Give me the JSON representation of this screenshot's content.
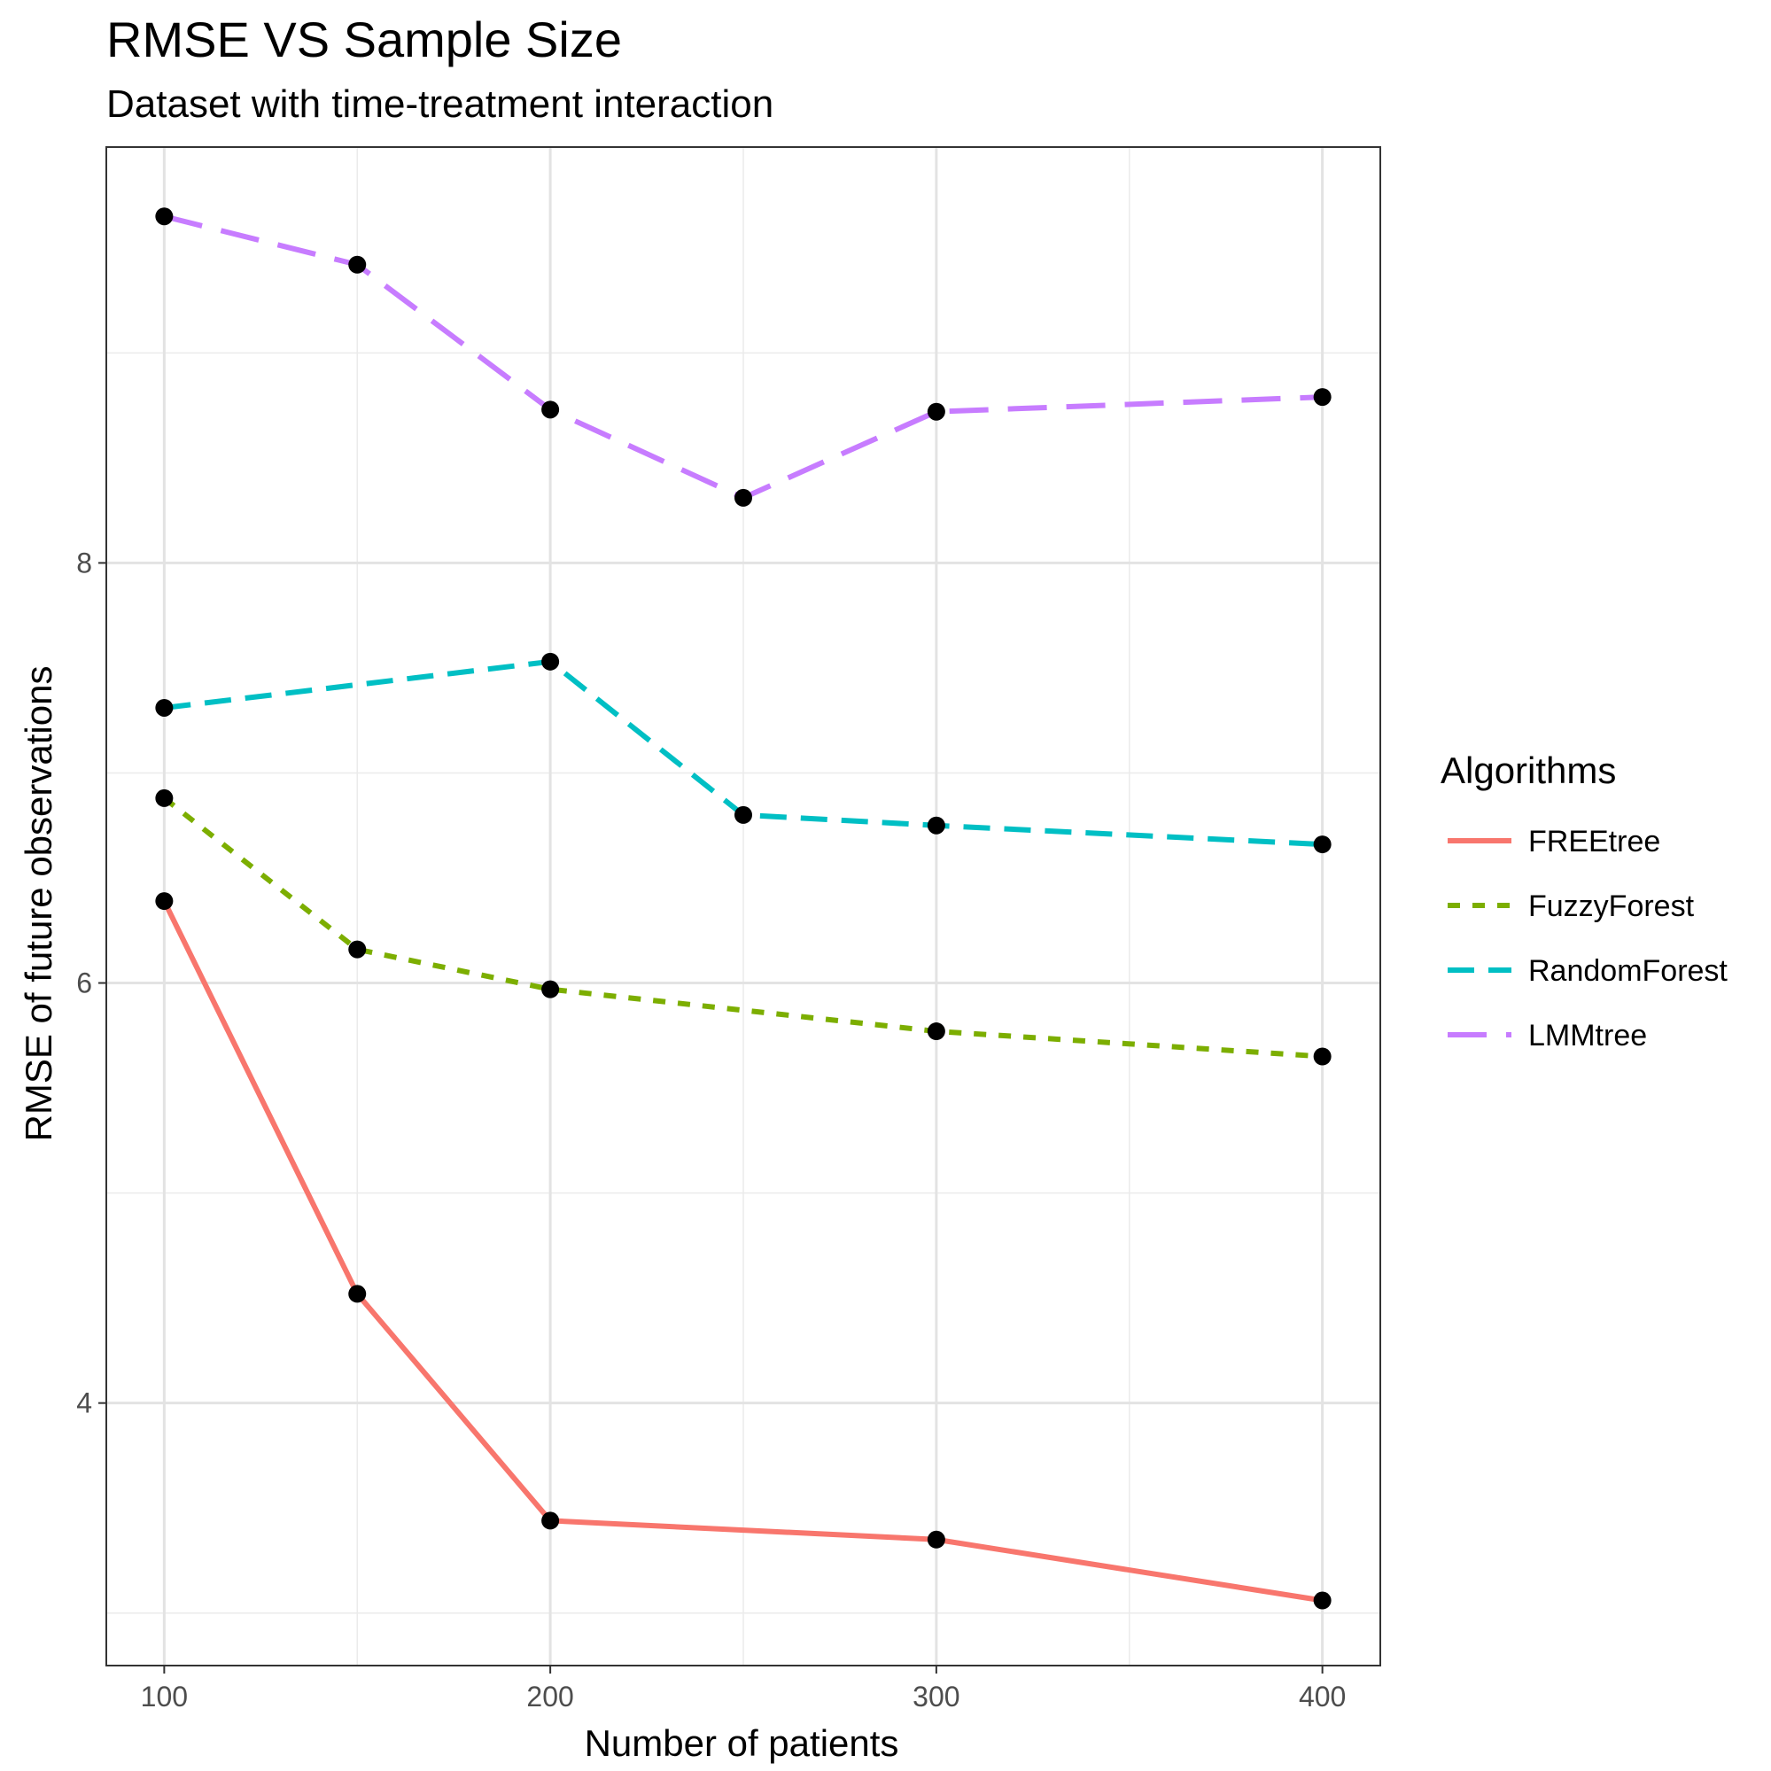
{
  "chart_data": {
    "type": "line",
    "title": "RMSE VS Sample Size",
    "subtitle": "Dataset with time-treatment interaction",
    "xlabel": "Number of patients",
    "ylabel": "RMSE of future observations",
    "xlim": [
      85,
      415
    ],
    "ylim": [
      2.75,
      9.98
    ],
    "x_ticks": [
      100,
      200,
      300,
      400
    ],
    "y_ticks": [
      4,
      6,
      8
    ],
    "grid": true,
    "legend": {
      "title": "Algorithms",
      "placement": "right"
    },
    "series": [
      {
        "name": "FREEtree",
        "color": "#F8766D",
        "dash": "solid",
        "points": [
          [
            100,
            6.39
          ],
          [
            150,
            4.52
          ],
          [
            200,
            3.44
          ],
          [
            300,
            3.35
          ],
          [
            400,
            3.06
          ]
        ]
      },
      {
        "name": "FuzzyForest",
        "color": "#7CAE00",
        "dash": "dotted",
        "points": [
          [
            100,
            6.88
          ],
          [
            150,
            6.16
          ],
          [
            200,
            5.97
          ],
          [
            300,
            5.77
          ],
          [
            400,
            5.65
          ]
        ]
      },
      {
        "name": "RandomForest",
        "color": "#00BFC4",
        "dash": "dashed",
        "points": [
          [
            100,
            7.31
          ],
          [
            200,
            7.53
          ],
          [
            250,
            6.8
          ],
          [
            300,
            6.75
          ],
          [
            400,
            6.66
          ]
        ]
      },
      {
        "name": "LMMtree",
        "color": "#C77CFF",
        "dash": "longdash",
        "points": [
          [
            100,
            9.65
          ],
          [
            150,
            9.42
          ],
          [
            200,
            8.73
          ],
          [
            250,
            8.31
          ],
          [
            300,
            8.72
          ],
          [
            400,
            8.79
          ]
        ]
      }
    ]
  }
}
